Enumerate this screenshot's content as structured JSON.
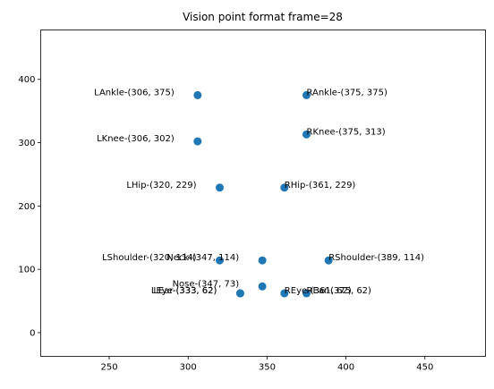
{
  "chart_data": {
    "type": "scatter",
    "title": "Vision point format frame=28",
    "xlabel": "",
    "ylabel": "",
    "xlim": [
      206.6,
      488.4
    ],
    "ylim": [
      -37.5,
      478.0
    ],
    "xticks": [
      250,
      300,
      350,
      400,
      450
    ],
    "yticks": [
      0,
      100,
      200,
      300,
      400
    ],
    "grid": false,
    "marker_color": "#1f77b4",
    "points": [
      {
        "x": 306,
        "y": 375,
        "label": "LAnkle-(306, 375)"
      },
      {
        "x": 375,
        "y": 375,
        "label": "RAnkle-(375, 375)"
      },
      {
        "x": 306,
        "y": 302,
        "label": "LKnee-(306, 302)"
      },
      {
        "x": 375,
        "y": 313,
        "label": "RKnee-(375, 313)"
      },
      {
        "x": 320,
        "y": 229,
        "label": "LHip-(320, 229)"
      },
      {
        "x": 361,
        "y": 229,
        "label": "RHip-(361, 229)"
      },
      {
        "x": 320,
        "y": 114,
        "label": "LShoulder-(320, 114)"
      },
      {
        "x": 347,
        "y": 114,
        "label": "Neck-(347, 114)"
      },
      {
        "x": 389,
        "y": 114,
        "label": "RShoulder-(389, 114)"
      },
      {
        "x": 347,
        "y": 73,
        "label": "Nose-(347, 73)"
      },
      {
        "x": 333,
        "y": 62,
        "label": "LEar-(333, 62)"
      },
      {
        "x": 333,
        "y": 62,
        "label": "LEye-(333, 62)"
      },
      {
        "x": 361,
        "y": 62,
        "label": "REye-(361, 62)"
      },
      {
        "x": 375,
        "y": 62,
        "label": "REar-(375, 62)"
      }
    ]
  }
}
